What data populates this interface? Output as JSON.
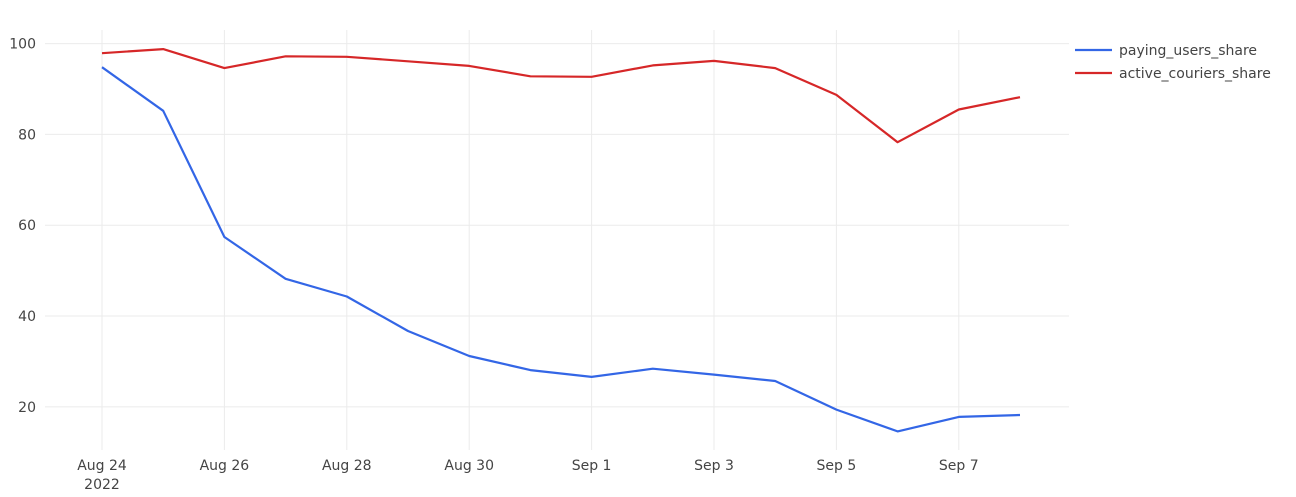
{
  "chart_data": {
    "type": "line",
    "x": [
      "2022-08-24",
      "2022-08-25",
      "2022-08-26",
      "2022-08-27",
      "2022-08-28",
      "2022-08-29",
      "2022-08-30",
      "2022-08-31",
      "2022-09-01",
      "2022-09-02",
      "2022-09-03",
      "2022-09-04",
      "2022-09-05",
      "2022-09-06",
      "2022-09-07",
      "2022-09-08"
    ],
    "series": [
      {
        "name": "paying_users_share",
        "color": "#3366e6",
        "values": [
          94.8,
          85.2,
          57.4,
          48.2,
          44.3,
          36.7,
          31.2,
          28.1,
          26.6,
          28.4,
          27.1,
          25.7,
          19.4,
          14.6,
          17.8,
          18.2
        ]
      },
      {
        "name": "active_couriers_share",
        "color": "#d62728",
        "values": [
          97.9,
          98.8,
          94.6,
          97.2,
          97.1,
          96.1,
          95.1,
          92.8,
          92.7,
          95.2,
          96.2,
          94.6,
          88.7,
          78.3,
          85.5,
          88.2
        ]
      }
    ],
    "ylim": [
      10.5,
      103
    ],
    "y_ticks": [
      "20",
      "40",
      "60",
      "80",
      "100"
    ],
    "x_ticks": [
      {
        "date": "2022-08-24",
        "label": "Aug 24",
        "sublabel": "2022"
      },
      {
        "date": "2022-08-26",
        "label": "Aug 26"
      },
      {
        "date": "2022-08-28",
        "label": "Aug 28"
      },
      {
        "date": "2022-08-30",
        "label": "Aug 30"
      },
      {
        "date": "2022-09-01",
        "label": "Sep 1"
      },
      {
        "date": "2022-09-03",
        "label": "Sep 3"
      },
      {
        "date": "2022-09-05",
        "label": "Sep 5"
      },
      {
        "date": "2022-09-07",
        "label": "Sep 7"
      }
    ],
    "grid": true,
    "legend_position": "top-right"
  }
}
